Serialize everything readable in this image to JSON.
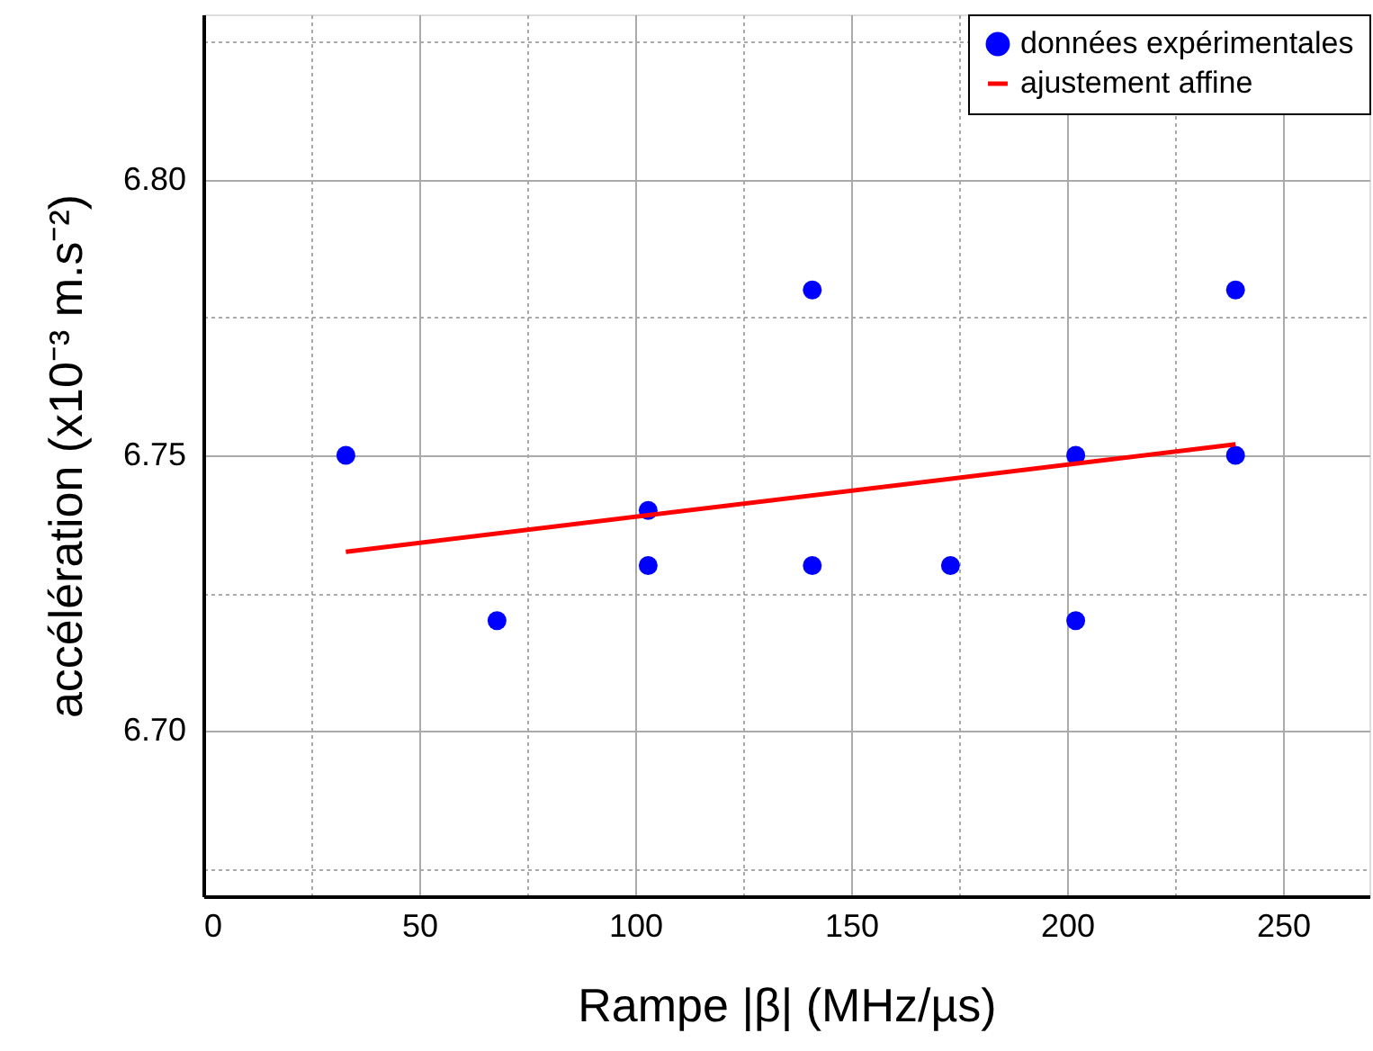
{
  "chart_data": {
    "type": "scatter",
    "xlabel": "Rampe |β| (MHz/µs)",
    "ylabel": "accélération (x10⁻³ m.s⁻²)",
    "series": [
      {
        "name": "données expérimentales",
        "color": "#0000ff",
        "marker": "circle",
        "x": [
          33,
          68,
          103,
          103,
          141,
          141,
          173,
          202,
          202,
          239,
          239
        ],
        "values": [
          6.75,
          6.72,
          6.74,
          6.73,
          6.78,
          6.73,
          6.73,
          6.75,
          6.72,
          6.78,
          6.75
        ]
      },
      {
        "name": "ajustement affine",
        "type": "line",
        "color": "#ff0000",
        "line_style": "solid",
        "x": [
          33,
          239
        ],
        "values": [
          6.7325,
          6.752
        ]
      }
    ],
    "xlim": [
      0,
      270
    ],
    "ylim": [
      6.67,
      6.83
    ],
    "xticks": [
      0,
      {
        "value": 25,
        "label": null
      },
      50,
      {
        "value": 75,
        "label": null
      },
      100,
      {
        "value": 125,
        "label": null
      },
      150,
      {
        "value": 175,
        "label": null
      },
      200,
      {
        "value": 225,
        "label": null
      },
      250
    ],
    "yticks": [
      {
        "value": 6.675,
        "label": null
      },
      {
        "value": 6.7,
        "label": "6.70"
      },
      {
        "value": 6.725,
        "label": null
      },
      {
        "value": 6.75,
        "label": "6.75"
      },
      {
        "value": 6.775,
        "label": null
      },
      {
        "value": 6.8,
        "label": "6.80"
      },
      {
        "value": 6.825,
        "label": null
      }
    ],
    "grid": true,
    "legend": "top right"
  }
}
